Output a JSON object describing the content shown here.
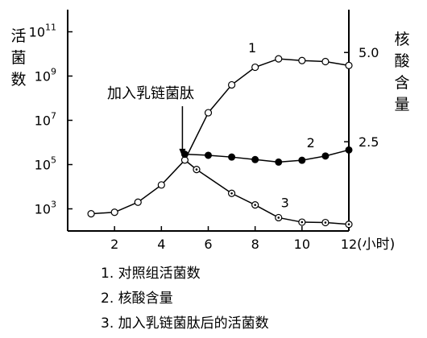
{
  "chart_data": {
    "type": "line",
    "x": [
      1,
      2,
      3,
      4,
      5,
      6,
      7,
      8,
      9,
      10,
      11,
      12
    ],
    "x_axis": {
      "label": "(小时)",
      "range": [
        0,
        12
      ],
      "ticks": [
        2,
        4,
        6,
        8,
        10,
        12
      ]
    },
    "y_left": {
      "label": "活菌数",
      "scale": "log",
      "range": [
        100,
        1000000000000.0
      ],
      "ticks": [
        {
          "value": 1000,
          "label": "10",
          "exp": "3"
        },
        {
          "value": 100000,
          "label": "10",
          "exp": "5"
        },
        {
          "value": 10000000,
          "label": "10",
          "exp": "7"
        },
        {
          "value": 1000000000,
          "label": "10",
          "exp": "9"
        },
        {
          "value": 100000000000,
          "label": "10",
          "exp": "11"
        }
      ]
    },
    "y_right": {
      "label": "核酸含量",
      "scale": "linear",
      "range": [
        0,
        6.2
      ],
      "ticks": [
        {
          "value": 2.5,
          "label": "2.5"
        },
        {
          "value": 5.0,
          "label": "5.0"
        }
      ]
    },
    "series": [
      {
        "name": "1",
        "axis": "left",
        "marker": "open",
        "points": [
          [
            1,
            600
          ],
          [
            2,
            700
          ],
          [
            3,
            2000
          ],
          [
            4,
            12000
          ],
          [
            5,
            160000
          ],
          [
            6,
            22000000
          ],
          [
            7,
            400000000
          ],
          [
            8,
            2500000000
          ],
          [
            9,
            6000000000
          ],
          [
            10,
            5000000000
          ],
          [
            11,
            4500000000
          ],
          [
            12,
            3000000000
          ]
        ]
      },
      {
        "name": "2",
        "axis": "right",
        "marker": "filled",
        "points": [
          [
            5,
            2.15
          ],
          [
            6,
            2.12
          ],
          [
            7,
            2.07
          ],
          [
            8,
            2.0
          ],
          [
            9,
            1.93
          ],
          [
            10,
            1.98
          ],
          [
            11,
            2.1
          ],
          [
            12,
            2.27
          ]
        ]
      },
      {
        "name": "3",
        "axis": "left",
        "marker": "dot",
        "points": [
          [
            5,
            160000
          ],
          [
            5.5,
            60000
          ],
          [
            7,
            5000
          ],
          [
            8,
            1500
          ],
          [
            9,
            400
          ],
          [
            10,
            250
          ],
          [
            11,
            240
          ],
          [
            12,
            200
          ]
        ]
      }
    ],
    "annotation": {
      "text": "加入乳链菌肽",
      "x": 5
    },
    "legend": [
      {
        "text": "1. 对照组活菌数"
      },
      {
        "text": "2. 核酸含量"
      },
      {
        "text": "3. 加入乳链菌肽后的活菌数"
      }
    ]
  }
}
